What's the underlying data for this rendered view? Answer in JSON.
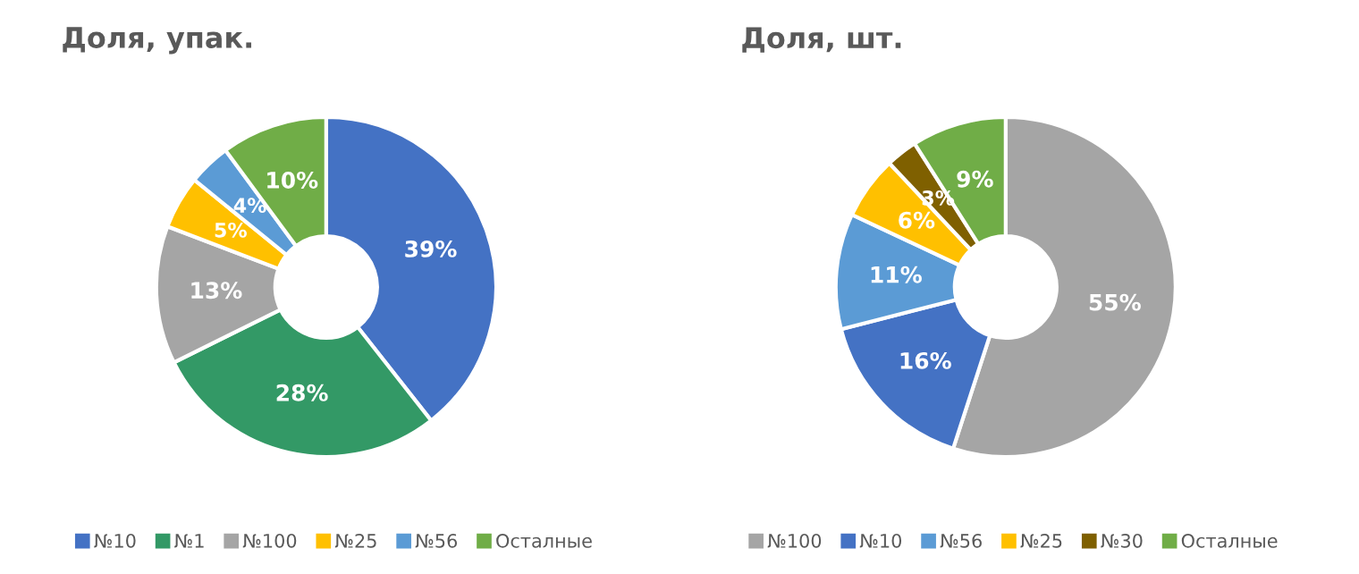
{
  "chart_data": [
    {
      "type": "donut",
      "title": "Доля, упак.",
      "categories": [
        "№10",
        "№1",
        "№100",
        "№25",
        "№56",
        "Осталные"
      ],
      "values": [
        39,
        28,
        13,
        5,
        4,
        10
      ],
      "colors": [
        "#4472c4",
        "#339966",
        "#a5a5a5",
        "#ffc000",
        "#5b9bd5",
        "#70ad47"
      ],
      "value_labels": [
        "39%",
        "28%",
        "13%",
        "5%",
        "4%",
        "10%"
      ],
      "legend": "bottom"
    },
    {
      "type": "donut",
      "title": "Доля, шт.",
      "categories": [
        "№100",
        "№10",
        "№56",
        "№25",
        "№30",
        "Осталные"
      ],
      "values": [
        55,
        16,
        11,
        6,
        3,
        9
      ],
      "colors": [
        "#a5a5a5",
        "#4472c4",
        "#5b9bd5",
        "#ffc000",
        "#7f6000",
        "#70ad47"
      ],
      "value_labels": [
        "55%",
        "16%",
        "11%",
        "6%",
        "3%",
        "9%"
      ],
      "legend": "bottom"
    }
  ]
}
